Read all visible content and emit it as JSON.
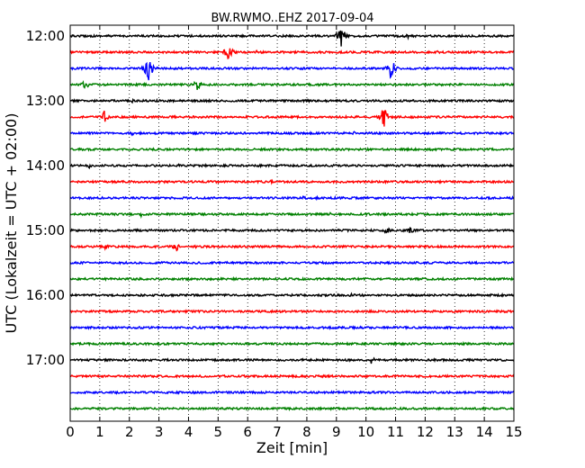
{
  "chart_data": {
    "type": "line",
    "title": "BW.RWMO..EHZ 2017-09-04",
    "xlabel": "Zeit  [min]",
    "ylabel": "UTC (Lokalzeit = UTC + 02:00)",
    "xlim": [
      0,
      15
    ],
    "x_ticks": [
      "0",
      "1",
      "2",
      "3",
      "4",
      "5",
      "6",
      "7",
      "8",
      "9",
      "10",
      "11",
      "12",
      "13",
      "14",
      "15"
    ],
    "y_ticks": [
      {
        "label": "12:00",
        "row": 0
      },
      {
        "label": "13:00",
        "row": 4
      },
      {
        "label": "14:00",
        "row": 8
      },
      {
        "label": "15:00",
        "row": 12
      },
      {
        "label": "16:00",
        "row": 16
      },
      {
        "label": "17:00",
        "row": 20
      }
    ],
    "grid": "vertical dotted",
    "trace_colors": [
      "#000000",
      "#ff0000",
      "#0000ff",
      "#008000"
    ],
    "series": [
      {
        "start": "12:00",
        "events": [
          {
            "t": 9.15,
            "amp": 14
          },
          {
            "t": 8.2,
            "amp": 3
          },
          {
            "t": 11.4,
            "amp": 3
          }
        ]
      },
      {
        "start": "12:15",
        "events": [
          {
            "t": 5.35,
            "amp": 12
          },
          {
            "t": 6.3,
            "amp": 2
          },
          {
            "t": 12.4,
            "amp": 2
          }
        ]
      },
      {
        "start": "12:30",
        "events": [
          {
            "t": 2.65,
            "amp": 15
          },
          {
            "t": 10.85,
            "amp": 13
          }
        ]
      },
      {
        "start": "12:45",
        "events": [
          {
            "t": 0.5,
            "amp": 6
          },
          {
            "t": 4.3,
            "amp": 7
          },
          {
            "t": 8.4,
            "amp": 2
          }
        ]
      },
      {
        "start": "13:00",
        "events": [
          {
            "t": 10.5,
            "amp": 2
          },
          {
            "t": 2.1,
            "amp": 2
          }
        ]
      },
      {
        "start": "13:15",
        "events": [
          {
            "t": 1.15,
            "amp": 8
          },
          {
            "t": 10.6,
            "amp": 14
          },
          {
            "t": 7.5,
            "amp": 2
          }
        ]
      },
      {
        "start": "13:30",
        "events": [
          {
            "t": 2.1,
            "amp": 3
          },
          {
            "t": 9.6,
            "amp": 2
          }
        ]
      },
      {
        "start": "13:45",
        "events": [
          {
            "t": 12.2,
            "amp": 2
          }
        ]
      },
      {
        "start": "14:00",
        "events": [
          {
            "t": 0.65,
            "amp": 4
          },
          {
            "t": 3.7,
            "amp": 2
          }
        ]
      },
      {
        "start": "14:15",
        "events": [
          {
            "t": 6.8,
            "amp": 2
          }
        ]
      },
      {
        "start": "14:30",
        "events": [
          {
            "t": 7.9,
            "amp": 3
          },
          {
            "t": 8.3,
            "amp": 2
          }
        ]
      },
      {
        "start": "14:45",
        "events": [
          {
            "t": 2.4,
            "amp": 3
          },
          {
            "t": 8.8,
            "amp": 2
          }
        ]
      },
      {
        "start": "15:00",
        "events": [
          {
            "t": 10.7,
            "amp": 4
          },
          {
            "t": 11.5,
            "amp": 4
          }
        ]
      },
      {
        "start": "15:15",
        "events": [
          {
            "t": 1.2,
            "amp": 3
          },
          {
            "t": 3.6,
            "amp": 5
          },
          {
            "t": 4.3,
            "amp": 3
          }
        ]
      },
      {
        "start": "15:30",
        "events": [
          {
            "t": 4.2,
            "amp": 2
          }
        ]
      },
      {
        "start": "15:45",
        "events": []
      },
      {
        "start": "16:00",
        "events": [
          {
            "t": 9.5,
            "amp": 3
          }
        ]
      },
      {
        "start": "16:15",
        "events": [
          {
            "t": 3.1,
            "amp": 2
          }
        ]
      },
      {
        "start": "16:30",
        "events": []
      },
      {
        "start": "16:45",
        "events": []
      },
      {
        "start": "17:00",
        "events": [
          {
            "t": 10.2,
            "amp": 5
          },
          {
            "t": 8.7,
            "amp": 2
          }
        ]
      },
      {
        "start": "17:15",
        "events": []
      },
      {
        "start": "17:30",
        "events": []
      },
      {
        "start": "17:45",
        "events": []
      }
    ]
  }
}
